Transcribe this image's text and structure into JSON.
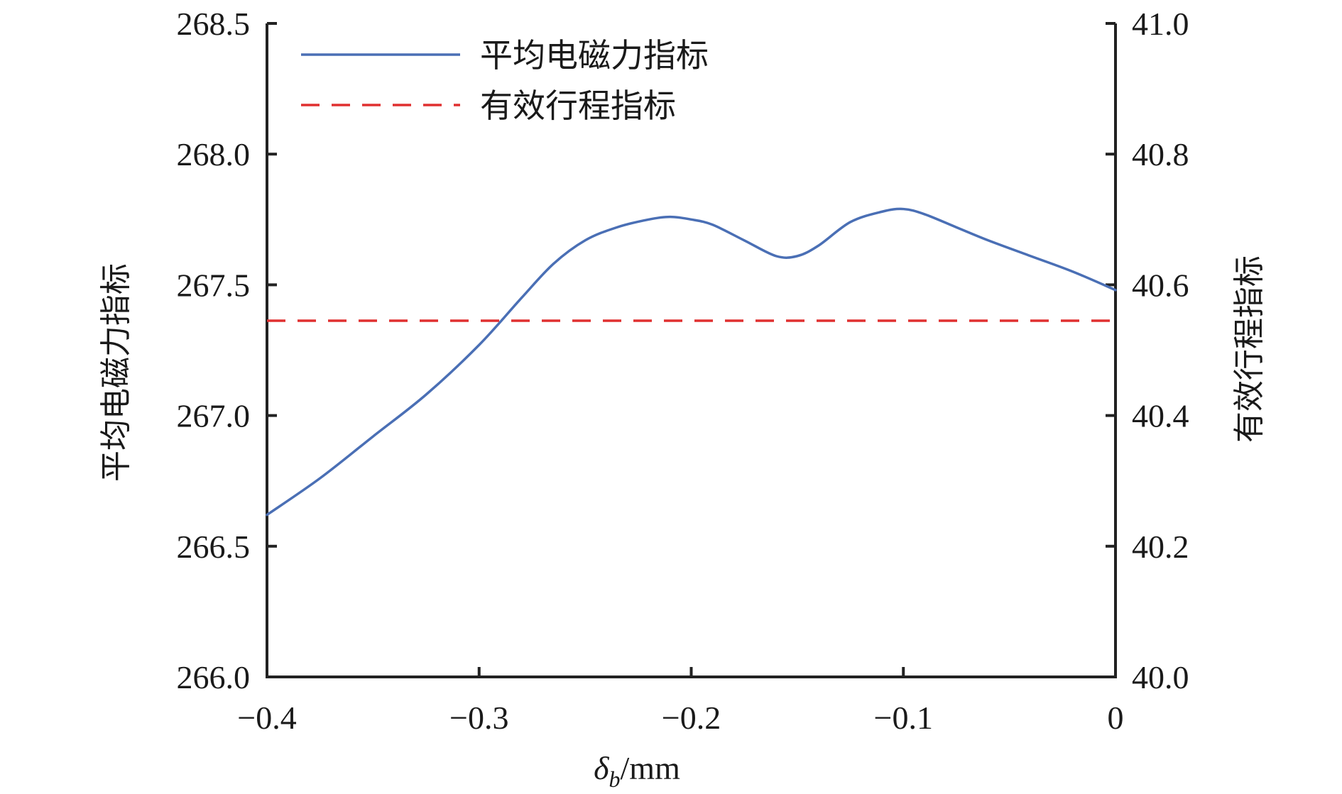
{
  "chart_data": {
    "type": "line",
    "xlabel_symbol": "δ",
    "xlabel_subscript": "b",
    "xlabel_unit": "/mm",
    "ylabel_left": "平均电磁力指标",
    "ylabel_right": "有效行程指标",
    "x_ticks": [
      "−0.4",
      "−0.3",
      "−0.2",
      "−0.1",
      "0"
    ],
    "x_tick_values": [
      -0.4,
      -0.3,
      -0.2,
      -0.1,
      0
    ],
    "y_left_ticks": [
      "266.0",
      "266.5",
      "267.0",
      "267.5",
      "268.0",
      "268.5"
    ],
    "y_left_tick_values": [
      266.0,
      266.5,
      267.0,
      267.5,
      268.0,
      268.5
    ],
    "y_right_ticks": [
      "40.0",
      "40.2",
      "40.4",
      "40.6",
      "40.8",
      "41.0"
    ],
    "y_right_tick_values": [
      40.0,
      40.2,
      40.4,
      40.6,
      40.8,
      41.0
    ],
    "xlim": [
      -0.4,
      0
    ],
    "ylim_left": [
      266.0,
      268.5
    ],
    "ylim_right": [
      40.0,
      41.0
    ],
    "grid": false,
    "legend_position": "top-left",
    "series": [
      {
        "name": "平均电磁力指标",
        "axis": "left",
        "style": "solid",
        "color": "#4a6fb5",
        "x": [
          -0.4,
          -0.375,
          -0.35,
          -0.325,
          -0.3,
          -0.28,
          -0.265,
          -0.25,
          -0.235,
          -0.22,
          -0.21,
          -0.2,
          -0.19,
          -0.175,
          -0.16,
          -0.15,
          -0.14,
          -0.125,
          -0.11,
          -0.1,
          -0.09,
          -0.075,
          -0.06,
          -0.04,
          -0.02,
          0
        ],
        "y": [
          266.62,
          266.76,
          266.92,
          267.08,
          267.27,
          267.45,
          267.58,
          267.67,
          267.72,
          267.75,
          267.76,
          267.75,
          267.73,
          267.67,
          267.61,
          267.61,
          267.65,
          267.74,
          267.78,
          267.79,
          267.77,
          267.72,
          267.67,
          267.61,
          267.55,
          267.48
        ]
      },
      {
        "name": "有效行程指标",
        "axis": "right",
        "style": "dashed",
        "color": "#e03030",
        "x": [
          -0.4,
          0
        ],
        "y": [
          40.545,
          40.545
        ]
      }
    ]
  }
}
